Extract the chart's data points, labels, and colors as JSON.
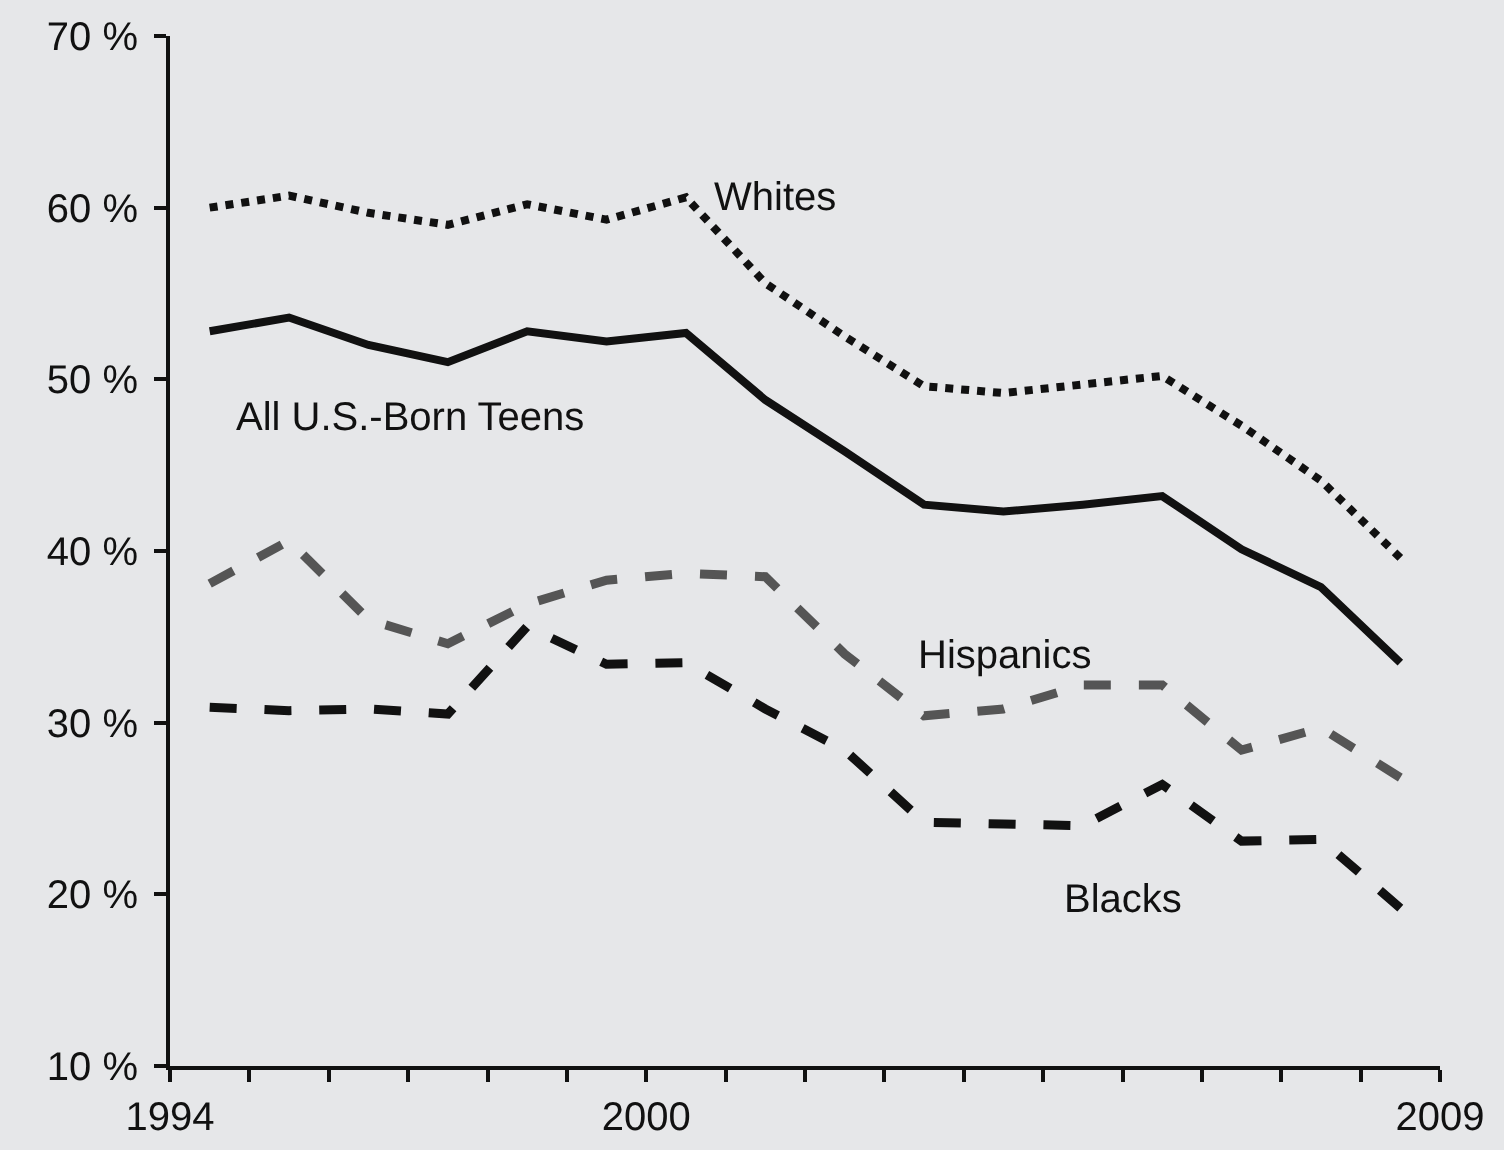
{
  "chart_data": {
    "type": "line",
    "x": [
      1994,
      1995,
      1996,
      1997,
      1998,
      1999,
      2000,
      2001,
      2002,
      2003,
      2004,
      2005,
      2006,
      2007,
      2008,
      2009
    ],
    "series": [
      {
        "name": "Whites",
        "color": "#111111",
        "line_style": "dotted",
        "values": [
          60.0,
          60.7,
          59.7,
          59.0,
          60.2,
          59.3,
          60.6,
          55.6,
          52.5,
          49.6,
          49.2,
          49.7,
          50.2,
          47.3,
          44.1,
          39.6
        ]
      },
      {
        "name": "All U.S.-Born Teens",
        "color": "#111111",
        "line_style": "solid",
        "values": [
          52.8,
          53.6,
          52.0,
          51.0,
          52.8,
          52.2,
          52.7,
          48.8,
          45.8,
          42.7,
          42.3,
          42.7,
          43.2,
          40.1,
          37.9,
          33.5
        ]
      },
      {
        "name": "Hispanics",
        "color": "#555555",
        "line_style": "dashed",
        "values": [
          38.1,
          40.6,
          36.0,
          34.6,
          36.9,
          38.3,
          38.7,
          38.5,
          34.0,
          30.4,
          30.8,
          32.2,
          32.2,
          28.4,
          29.7,
          26.8
        ]
      },
      {
        "name": "Blacks",
        "color": "#111111",
        "line_style": "dashed",
        "values": [
          30.9,
          30.7,
          30.8,
          30.5,
          35.6,
          33.4,
          33.5,
          30.8,
          28.4,
          24.2,
          24.1,
          24.0,
          26.4,
          23.1,
          23.2,
          19.2
        ]
      }
    ],
    "xlim": [
      1993.5,
      2009.5
    ],
    "xticks": [
      {
        "value": 1993.5,
        "label": "1994"
      },
      {
        "value": 1994.5,
        "label": null
      },
      {
        "value": 1995.5,
        "label": null
      },
      {
        "value": 1996.5,
        "label": null
      },
      {
        "value": 1997.5,
        "label": null
      },
      {
        "value": 1998.5,
        "label": null
      },
      {
        "value": 1999.5,
        "label": "2000"
      },
      {
        "value": 2000.5,
        "label": null
      },
      {
        "value": 2001.5,
        "label": null
      },
      {
        "value": 2002.5,
        "label": null
      },
      {
        "value": 2003.5,
        "label": null
      },
      {
        "value": 2004.5,
        "label": null
      },
      {
        "value": 2005.5,
        "label": null
      },
      {
        "value": 2006.5,
        "label": null
      },
      {
        "value": 2007.5,
        "label": null
      },
      {
        "value": 2008.5,
        "label": null
      },
      {
        "value": 2009.5,
        "label": "2009"
      }
    ],
    "ylim": [
      10,
      70
    ],
    "yticks": [
      {
        "value": 10,
        "label": "10 %"
      },
      {
        "value": 20,
        "label": "20 %"
      },
      {
        "value": 30,
        "label": "30 %"
      },
      {
        "value": 40,
        "label": "40 %"
      },
      {
        "value": 50,
        "label": "50 %"
      },
      {
        "value": 60,
        "label": "60 %"
      },
      {
        "value": 70,
        "label": "70 %"
      }
    ],
    "grid": false,
    "legend": false,
    "marker": "none"
  }
}
